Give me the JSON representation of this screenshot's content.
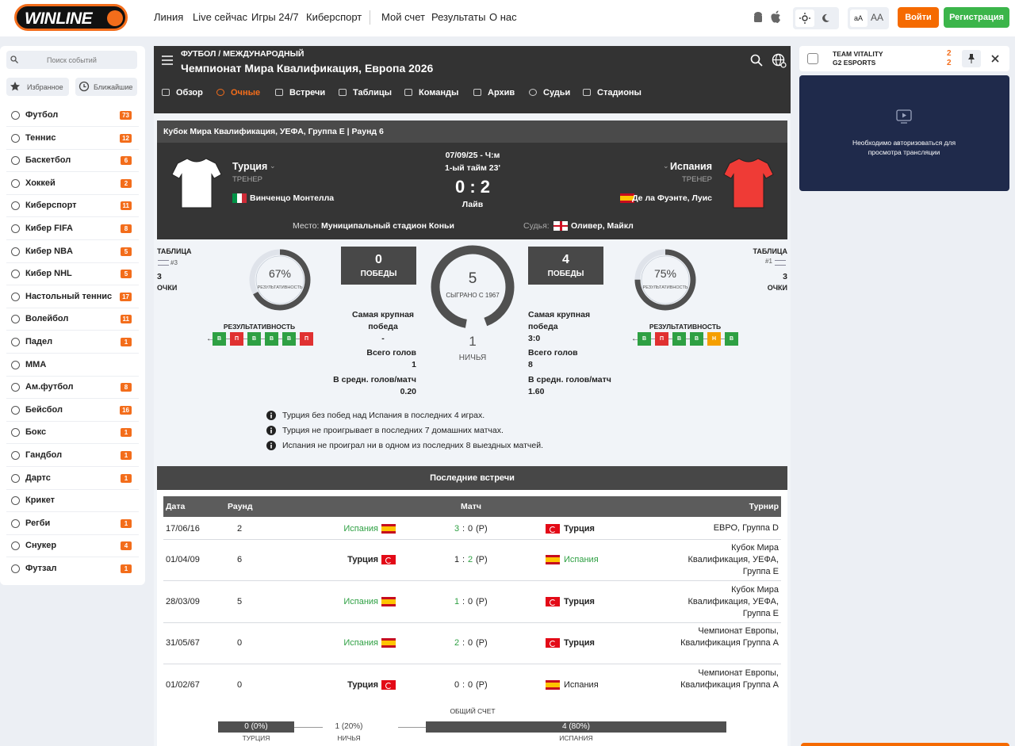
{
  "header": {
    "logo": "WINLINE",
    "nav": [
      "Линия",
      "Live сейчас",
      "Игры 24/7",
      "Киберспорт"
    ],
    "nav2": [
      "Мой счет",
      "Результаты",
      "О нас"
    ],
    "font_small": "aA",
    "font_large": "AA",
    "login": "Войти",
    "register": "Регистрация"
  },
  "sidebar": {
    "search": "Поиск событий",
    "favorites": "Избранное",
    "nearest": "Ближайшие",
    "sports": [
      {
        "name": "Футбол",
        "count": 73
      },
      {
        "name": "Теннис",
        "count": 12
      },
      {
        "name": "Баскетбол",
        "count": 6
      },
      {
        "name": "Хоккей",
        "count": 2
      },
      {
        "name": "Киберспорт",
        "count": 11
      },
      {
        "name": "Кибер FIFA",
        "count": 8
      },
      {
        "name": "Кибер NBA",
        "count": 5
      },
      {
        "name": "Кибер NHL",
        "count": 5
      },
      {
        "name": "Настольный теннис",
        "count": 17
      },
      {
        "name": "Волейбол",
        "count": 11
      },
      {
        "name": "Падел",
        "count": 1
      },
      {
        "name": "MMA"
      },
      {
        "name": "Ам.футбол",
        "count": 8
      },
      {
        "name": "Бейсбол",
        "count": 16
      },
      {
        "name": "Бокс",
        "count": 1
      },
      {
        "name": "Гандбол",
        "count": 1
      },
      {
        "name": "Дартс",
        "count": 1
      },
      {
        "name": "Крикет"
      },
      {
        "name": "Регби",
        "count": 1
      },
      {
        "name": "Снукер",
        "count": 4
      },
      {
        "name": "Футзал",
        "count": 1
      }
    ]
  },
  "event": {
    "breadcrumb": "ФУТБОЛ / МЕЖДУНАРОДНЫЙ",
    "title": "Чемпионат Мира Квалификация, Европа 2026",
    "tabs": [
      "Обзор",
      "Очные",
      "Встречи",
      "Таблицы",
      "Команды",
      "Архив",
      "Судьи",
      "Стадионы"
    ]
  },
  "match": {
    "tournament": "Кубок Мира Квалификация, УЕФА, Группа E | Раунд 6",
    "datetime": "07/09/25 - Ч:м",
    "period": "1-ый тайм 23'",
    "score": "0 : 2",
    "status": "Лайв",
    "home": {
      "name": "Турция",
      "coach_label": "ТРЕНЕР",
      "coach": "Винченцо Монтелла"
    },
    "away": {
      "name": "Испания",
      "coach_label": "ТРЕНЕР",
      "coach": "Де ла Фуэнте, Луис"
    },
    "venue_label": "Место:",
    "venue": "Муниципальный стадион Коньи",
    "referee_label": "Судья:",
    "referee": "Оливер, Майкл"
  },
  "stats": {
    "home": {
      "table_label": "ТАБЛИЦА",
      "rank": "#3",
      "points": 3,
      "points_label": "ОЧКИ",
      "efficiency": {
        "value": 67,
        "label": "67%"
      },
      "efficiency_label": "РЕЗУЛЬТАТИВНОСТЬ",
      "form_label": "РЕЗУЛЬТАТИВНОСТЬ",
      "form": [
        "В",
        "П",
        "В",
        "В",
        "В",
        "П"
      ],
      "wins": 0,
      "wins_label": "ПОБЕДЫ",
      "biggest_win_label": "Самая крупная победа",
      "biggest_win": "-",
      "goals_label": "Всего голов",
      "goals": 1,
      "avg_label": "В средн. голов/матч",
      "avg": "0.20"
    },
    "away": {
      "table_label": "ТАБЛИЦА",
      "rank": "#1",
      "points": 3,
      "points_label": "ОЧКИ",
      "efficiency": {
        "value": 75,
        "label": "75%"
      },
      "efficiency_label": "РЕЗУЛЬТАТИВНОСТЬ",
      "form_label": "РЕЗУЛЬТАТИВНОСТЬ",
      "form": [
        "В",
        "П",
        "В",
        "В",
        "Н",
        "В"
      ],
      "wins": 4,
      "wins_label": "ПОБЕДЫ",
      "biggest_win_label": "Самая крупная победа",
      "biggest_win": "3:0",
      "goals_label": "Всего голов",
      "goals": 8,
      "avg_label": "В средн. голов/матч",
      "avg": "1.60"
    },
    "played": 5,
    "played_label": "СЫГРАНО С 1967",
    "draws": 1,
    "draws_label": "НИЧЬЯ"
  },
  "facts": [
    "Турция без побед над Испания в последних 4 играх.",
    "Турция не проигрывает в последних 7 домашних матчах.",
    "Испания не проиграл ни в одном из последних 8 выездных матчей."
  ],
  "history": {
    "title": "Последние встречи",
    "columns": [
      "Дата",
      "Раунд",
      "Матч",
      "Турнир"
    ],
    "rows": [
      {
        "date": "17/06/16",
        "round": 2,
        "home": "Испания",
        "home_score": 3,
        "sep": ":",
        "away_score": 0,
        "note": "(P)",
        "away": "Турция",
        "tournament": "ЕВРО, Группа D"
      },
      {
        "date": "01/04/09",
        "round": 6,
        "home": "Турция",
        "home_score": 1,
        "sep": ":",
        "away_score": 2,
        "note": "(P)",
        "away": "Испания",
        "tournament": "Кубок Мира Квалификация, УЕФА, Группа E"
      },
      {
        "date": "28/03/09",
        "round": 5,
        "home": "Испания",
        "home_score": 1,
        "sep": ":",
        "away_score": 0,
        "note": "(P)",
        "away": "Турция",
        "tournament": "Кубок Мира Квалификация, УЕФА, Группа E"
      },
      {
        "date": "31/05/67",
        "round": 0,
        "home": "Испания",
        "home_score": 2,
        "sep": ":",
        "away_score": 0,
        "note": "(P)",
        "away": "Турция",
        "tournament": "Чемпионат Европы, Квалификация Группа A"
      },
      {
        "date": "01/02/67",
        "round": 0,
        "home": "Турция",
        "home_score": 0,
        "sep": ":",
        "away_score": 0,
        "note": "(P)",
        "away": "Испания",
        "tournament": "Чемпионат Европы, Квалификация Группа A"
      }
    ]
  },
  "total": {
    "title": "ОБЩИЙ СЧЕТ",
    "home": "0 (0%)",
    "home_label": "ТУРЦИЯ",
    "draw": "1 (20%)",
    "draw_label": "НИЧЬЯ",
    "away": "4 (80%)",
    "away_label": "ИСПАНИЯ"
  },
  "stream": {
    "team1": "TEAM VITALITY",
    "team2": "G2 ESPORTS",
    "score1": 2,
    "score2": 2,
    "message": "Необходимо авторизоваться для просмотра трансляции"
  }
}
